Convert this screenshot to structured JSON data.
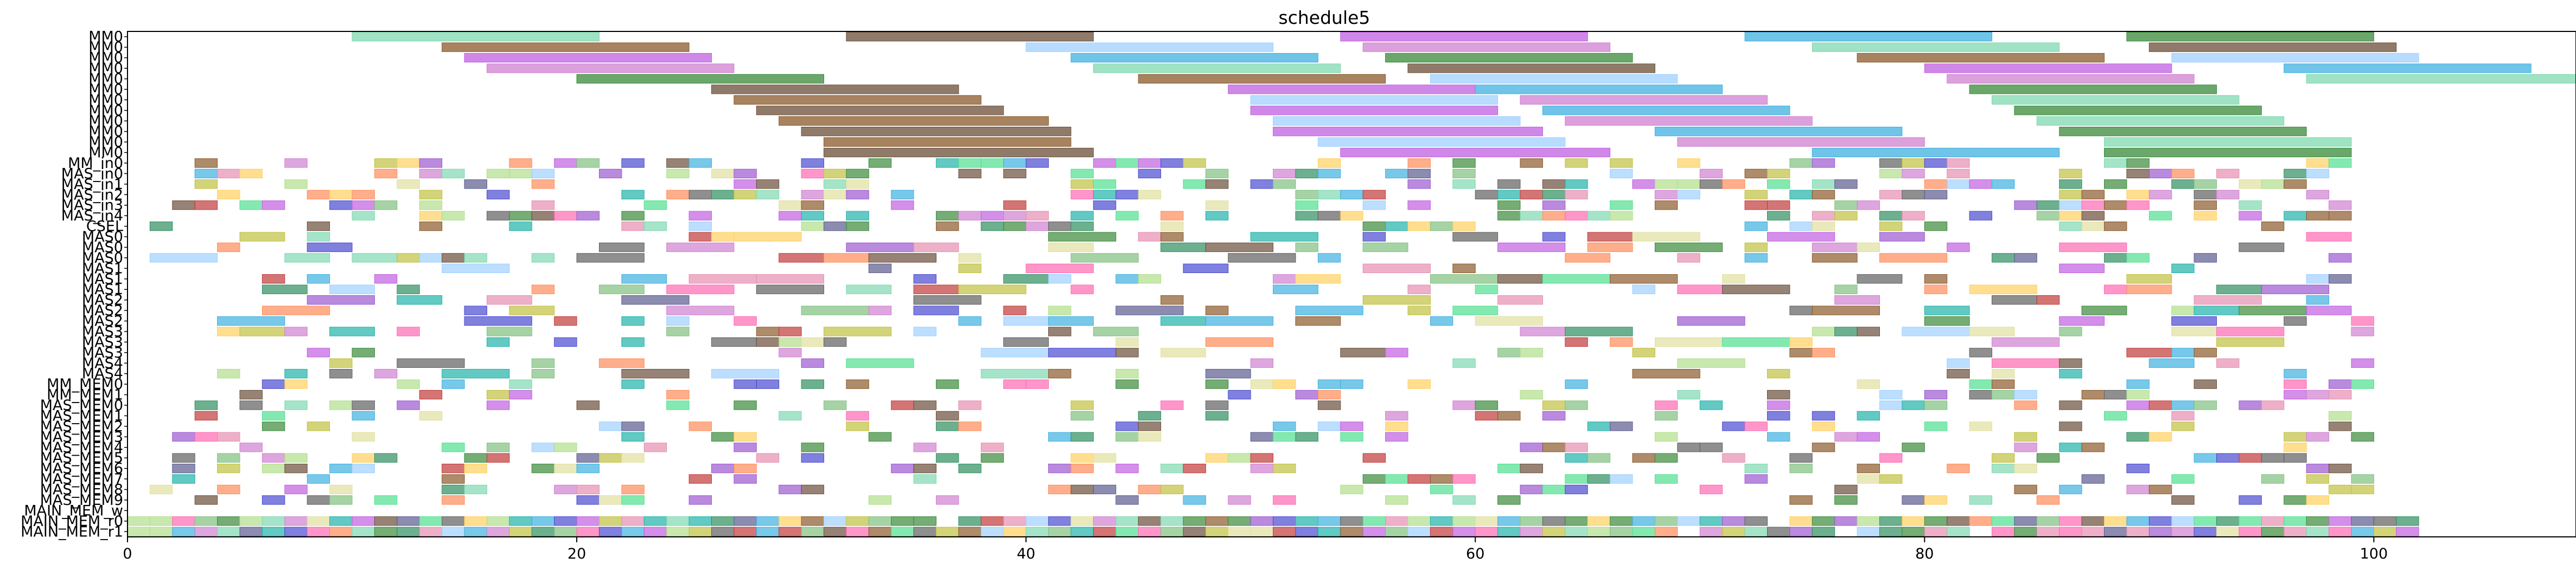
{
  "chart_data": {
    "type": "gantt",
    "title": "schedule5",
    "xlabel": "",
    "ylabel": "",
    "xlim": [
      0,
      109
    ],
    "x_ticks": [
      0,
      20,
      40,
      60,
      80,
      100
    ],
    "grid": false,
    "rows": [
      "MM0",
      "MM0",
      "MM0",
      "MM0",
      "MM0",
      "MM0",
      "MM0",
      "MM0",
      "MM0",
      "MM0",
      "MM0",
      "MM0",
      "MM_in0",
      "MAS_in0",
      "MAS_in1",
      "MAS_in2",
      "MAS_in3",
      "MAS_in4",
      "CSEL",
      "MAS0",
      "MAS0",
      "MAS0",
      "MAS1",
      "MAS1",
      "MAS1",
      "MAS2",
      "MAS2",
      "MAS2",
      "MAS3",
      "MAS3",
      "MAS3",
      "MAS4",
      "MAS4",
      "MM_MEM0",
      "MM_MEM1",
      "MAS_MEM0",
      "MAS_MEM1",
      "MAS_MEM2",
      "MAS_MEM3",
      "MAS_MEM4",
      "MAS_MEM5",
      "MAS_MEM6",
      "MAS_MEM7",
      "MAS_MEM8",
      "MAS_MEM9",
      "MAIN_MEM_w",
      "MAIN_MEM_r0",
      "MAIN_MEM_r1"
    ],
    "palette": [
      "#7fd8b0",
      "#2f8f5f",
      "#b0de8a",
      "#6b4f3a",
      "#5b5b8f",
      "#9b59d0",
      "#c060e0",
      "#e58fb0",
      "#c23a3a",
      "#3fb0e0",
      "#4a4ad0",
      "#ff8c5a",
      "#3a8a3a",
      "#ffd060",
      "#20b2aa",
      "#8b5a2b",
      "#50e090",
      "#ff69b4",
      "#a0d0ff",
      "#c0c040",
      "#606060",
      "#d080d0",
      "#80c080",
      "#e0e0a0"
    ],
    "tasks": [
      {
        "row": 0,
        "bars": [
          [
            10,
            21
          ],
          [
            32,
            43
          ],
          [
            54,
            65
          ],
          [
            72,
            83
          ],
          [
            89,
            100
          ]
        ]
      },
      {
        "row": 1,
        "bars": [
          [
            14,
            25
          ],
          [
            40,
            51
          ],
          [
            55,
            66
          ],
          [
            75,
            86
          ],
          [
            90,
            101
          ]
        ]
      },
      {
        "row": 2,
        "bars": [
          [
            15,
            26
          ],
          [
            42,
            53
          ],
          [
            56,
            67
          ],
          [
            77,
            88
          ],
          [
            91,
            102
          ]
        ]
      },
      {
        "row": 3,
        "bars": [
          [
            16,
            27
          ],
          [
            43,
            54
          ],
          [
            57,
            68
          ],
          [
            80,
            91
          ],
          [
            96,
            107
          ]
        ]
      },
      {
        "row": 4,
        "bars": [
          [
            20,
            31
          ],
          [
            45,
            56
          ],
          [
            58,
            69
          ],
          [
            81,
            92
          ],
          [
            97,
            109
          ]
        ]
      },
      {
        "row": 5,
        "bars": [
          [
            26,
            37
          ],
          [
            49,
            60
          ],
          [
            60,
            71
          ],
          [
            82,
            93
          ]
        ]
      },
      {
        "row": 6,
        "bars": [
          [
            27,
            38
          ],
          [
            50,
            61
          ],
          [
            62,
            73
          ],
          [
            83,
            94
          ]
        ]
      },
      {
        "row": 7,
        "bars": [
          [
            28,
            39
          ],
          [
            50,
            61
          ],
          [
            63,
            74
          ],
          [
            84,
            95
          ]
        ]
      },
      {
        "row": 8,
        "bars": [
          [
            29,
            41
          ],
          [
            51,
            62
          ],
          [
            64,
            75
          ],
          [
            85,
            96
          ]
        ]
      },
      {
        "row": 9,
        "bars": [
          [
            30,
            42
          ],
          [
            51,
            63
          ],
          [
            68,
            79
          ],
          [
            86,
            97
          ]
        ]
      },
      {
        "row": 10,
        "bars": [
          [
            31,
            42
          ],
          [
            53,
            64
          ],
          [
            69,
            80
          ],
          [
            88,
            99
          ]
        ]
      },
      {
        "row": 11,
        "bars": [
          [
            31,
            43
          ],
          [
            54,
            66
          ],
          [
            75,
            86
          ],
          [
            88,
            99
          ]
        ]
      }
    ],
    "short_task_unit": 1,
    "short_task_start_row": 12
  }
}
